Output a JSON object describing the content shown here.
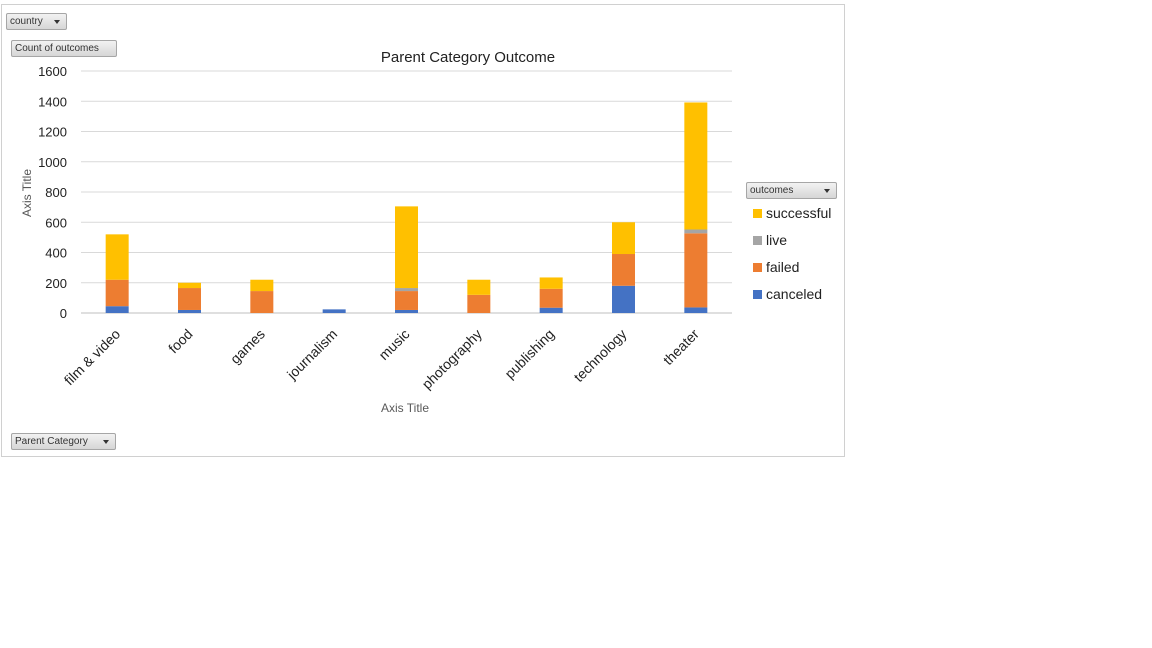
{
  "filters": {
    "country_label": "country",
    "values_label": "Count of outcomes",
    "legend_filter_label": "outcomes",
    "category_filter_label": "Parent Category"
  },
  "chart_data": {
    "type": "bar",
    "stacked": true,
    "title": "Parent Category Outcome",
    "xlabel": "Axis Title",
    "ylabel": "Axis Title",
    "ylim": [
      0,
      1600
    ],
    "yticks": [
      0,
      200,
      400,
      600,
      800,
      1000,
      1200,
      1400,
      1600
    ],
    "grid": true,
    "legend_position": "right",
    "categories": [
      "film & video",
      "food",
      "games",
      "journalism",
      "music",
      "photography",
      "publishing",
      "technology",
      "theater"
    ],
    "series": [
      {
        "name": "canceled",
        "color": "#4472c4",
        "values": [
          45,
          20,
          0,
          24,
          20,
          0,
          35,
          180,
          37
        ]
      },
      {
        "name": "failed",
        "color": "#ed7d31",
        "values": [
          175,
          145,
          145,
          0,
          125,
          120,
          125,
          210,
          490
        ]
      },
      {
        "name": "live",
        "color": "#a5a5a5",
        "values": [
          0,
          0,
          0,
          0,
          20,
          0,
          0,
          0,
          25
        ]
      },
      {
        "name": "successful",
        "color": "#ffc000",
        "values": [
          300,
          35,
          75,
          0,
          540,
          100,
          75,
          210,
          840
        ]
      }
    ]
  }
}
